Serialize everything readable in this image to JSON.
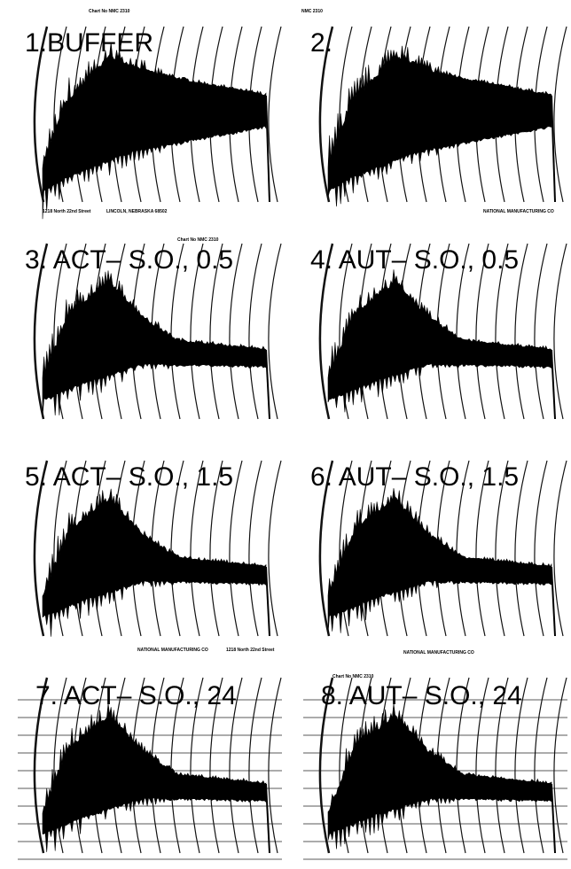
{
  "panels": [
    {
      "label": "1.BUFFER"
    },
    {
      "label": "2."
    },
    {
      "label": "3. ACT– S.O., 0.5"
    },
    {
      "label": "4. AUT– S.O., 0.5"
    },
    {
      "label": "5. ACT– S.O., 1.5"
    },
    {
      "label": "6. AUT– S.O., 1.5"
    },
    {
      "label": "7. ACT– S.O., 24"
    },
    {
      "label": "8. AUT– S.O., 24"
    }
  ],
  "paper_texts": [
    "Chart No NMC 2310",
    "NMC 2310",
    "1218 North 22nd Street",
    "LINCOLN, NEBRASKA 68502",
    "NATIONAL MANUFACTURING CO"
  ]
}
